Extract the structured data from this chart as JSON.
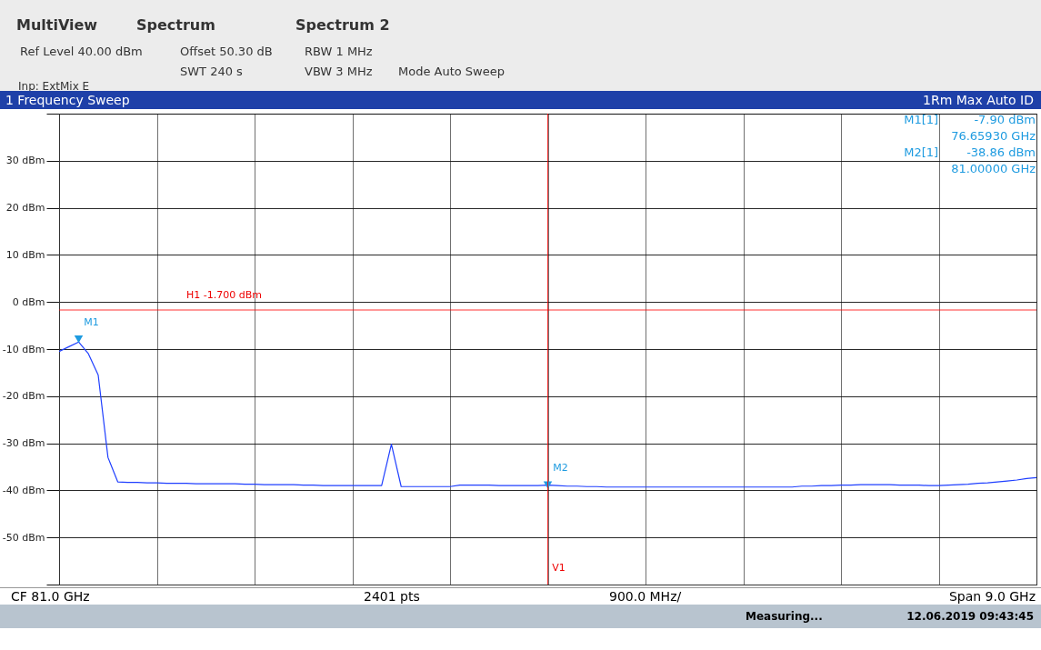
{
  "chart_data": {
    "type": "line",
    "title": "1 Frequency Sweep",
    "categories": [
      null,
      null,
      null,
      null,
      null,
      null,
      null,
      null,
      null,
      null,
      null,
      null,
      null,
      null,
      null,
      null,
      null,
      null,
      null,
      null,
      null,
      null,
      null,
      null,
      null,
      null,
      null,
      null,
      null,
      null,
      null,
      null,
      null,
      null,
      null,
      null,
      null,
      null,
      null,
      null,
      null,
      null,
      null,
      null,
      null,
      null,
      null,
      null,
      null,
      null,
      null,
      null,
      null,
      null,
      null,
      null,
      null,
      null,
      null,
      null,
      null,
      null,
      null,
      null,
      null,
      null,
      null,
      null,
      null,
      null,
      null,
      null,
      null,
      null,
      null,
      null,
      null,
      null,
      null,
      null,
      null,
      null,
      null,
      null,
      null,
      null,
      null,
      null,
      null,
      null,
      null,
      null,
      null,
      null,
      null,
      null,
      null,
      null,
      null,
      null,
      null
    ],
    "ylim": [
      -60,
      40
    ],
    "yticks": [
      {
        "value": -60,
        "label": null
      },
      {
        "value": -50,
        "label": "-50 dBm"
      },
      {
        "value": -40,
        "label": "-40 dBm"
      },
      {
        "value": -30,
        "label": "-30 dBm"
      },
      {
        "value": -20,
        "label": "-20 dBm"
      },
      {
        "value": -10,
        "label": "-10 dBm"
      },
      {
        "value": 0,
        "label": "0 dBm"
      },
      {
        "value": 10,
        "label": "10 dBm"
      },
      {
        "value": 20,
        "label": "20 dBm"
      },
      {
        "value": 30,
        "label": "30 dBm"
      },
      {
        "value": 40,
        "label": null
      }
    ],
    "grid": true,
    "tick_labels": "y",
    "series": [
      {
        "color": "#1f3fff",
        "values": [
          -10.5,
          -9.5,
          -8.5,
          -11,
          -15.5,
          -33,
          -38.2,
          -38.3,
          -38.3,
          -38.4,
          -38.4,
          -38.5,
          -38.5,
          -38.5,
          -38.6,
          -38.6,
          -38.6,
          -38.6,
          -38.6,
          -38.7,
          -38.7,
          -38.8,
          -38.8,
          -38.8,
          -38.8,
          -38.9,
          -38.9,
          -39.0,
          -39.0,
          -39.0,
          -39.0,
          -39.0,
          -39.0,
          -39.0,
          -30.2,
          -39.2,
          -39.2,
          -39.2,
          -39.2,
          -39.2,
          -39.2,
          -38.9,
          -38.9,
          -38.9,
          -38.9,
          -39.0,
          -39.0,
          -39.0,
          -39.0,
          -39.0,
          -38.9,
          -39.0,
          -39.1,
          -39.1,
          -39.2,
          -39.2,
          -39.3,
          -39.3,
          -39.3,
          -39.3,
          -39.3,
          -39.3,
          -39.3,
          -39.3,
          -39.3,
          -39.3,
          -39.3,
          -39.3,
          -39.3,
          -39.3,
          -39.3,
          -39.3,
          -39.3,
          -39.3,
          -39.3,
          -39.3,
          -39.1,
          -39.1,
          -39.0,
          -39.0,
          -38.9,
          -38.9,
          -38.8,
          -38.8,
          -38.8,
          -38.8,
          -38.9,
          -38.9,
          -38.9,
          -39.0,
          -39.0,
          -38.9,
          -38.8,
          -38.7,
          -38.5,
          -38.4,
          -38.2,
          -38.0,
          -37.8,
          -37.5,
          -37.3
        ]
      },
      {
        "name": "M1",
        "type": "scatter",
        "marker": "triangle",
        "color": "#1e9be0",
        "values": [
          null,
          null,
          -7.9,
          null,
          null,
          null,
          null,
          null,
          null,
          null,
          null,
          null,
          null,
          null,
          null,
          null,
          null,
          null,
          null,
          null,
          null,
          null,
          null,
          null,
          null,
          null,
          null,
          null,
          null,
          null,
          null,
          null,
          null,
          null,
          null,
          null,
          null,
          null,
          null,
          null,
          null,
          null,
          null,
          null,
          null,
          null,
          null,
          null,
          null,
          null,
          null,
          null,
          null,
          null,
          null,
          null,
          null,
          null,
          null,
          null,
          null,
          null,
          null,
          null,
          null,
          null,
          null,
          null,
          null,
          null,
          null,
          null,
          null,
          null,
          null,
          null,
          null,
          null,
          null,
          null,
          null,
          null,
          null,
          null,
          null,
          null,
          null,
          null,
          null,
          null,
          null,
          null,
          null,
          null,
          null,
          null,
          null,
          null,
          null,
          null,
          null
        ]
      },
      {
        "name": "M2",
        "type": "scatter",
        "marker": "triangle",
        "color": "#1e9be0",
        "values": [
          null,
          null,
          null,
          null,
          null,
          null,
          null,
          null,
          null,
          null,
          null,
          null,
          null,
          null,
          null,
          null,
          null,
          null,
          null,
          null,
          null,
          null,
          null,
          null,
          null,
          null,
          null,
          null,
          null,
          null,
          null,
          null,
          null,
          null,
          null,
          null,
          null,
          null,
          null,
          null,
          null,
          null,
          null,
          null,
          null,
          null,
          null,
          null,
          null,
          null,
          -38.86,
          null,
          null,
          null,
          null,
          null,
          null,
          null,
          null,
          null,
          null,
          null,
          null,
          null,
          null,
          null,
          null,
          null,
          null,
          null,
          null,
          null,
          null,
          null,
          null,
          null,
          null,
          null,
          null,
          null,
          null,
          null,
          null,
          null,
          null,
          null,
          null,
          null,
          null,
          null,
          null,
          null,
          null,
          null,
          null,
          null,
          null,
          null,
          null,
          null,
          null
        ]
      }
    ],
    "ref_lines": [
      {
        "axis": "y",
        "value": -1.7,
        "label": "H1 -1.700 dBm",
        "color": "#ff0000"
      }
    ],
    "annotations": [
      "MultiView",
      "Spectrum",
      "Spectrum 2",
      "Ref Level 40.00 dBm",
      "Offset 50.30 dB",
      "RBW 1 MHz",
      "SWT 240 s",
      "VBW 3 MHz",
      "Mode Auto Sweep",
      "Inp: ExtMix E",
      "1Rm Max Auto ID",
      "M1[1]",
      "-7.90 dBm",
      "76.65930 GHz",
      "M2[1]",
      "-38.86 dBm",
      "81.00000 GHz",
      "CF 81.0 GHz",
      "2401 pts",
      "900.0 MHz/",
      "Span 9.0 GHz",
      "Measuring...",
      "12.06.2019 09:43:45",
      "V1"
    ]
  }
}
